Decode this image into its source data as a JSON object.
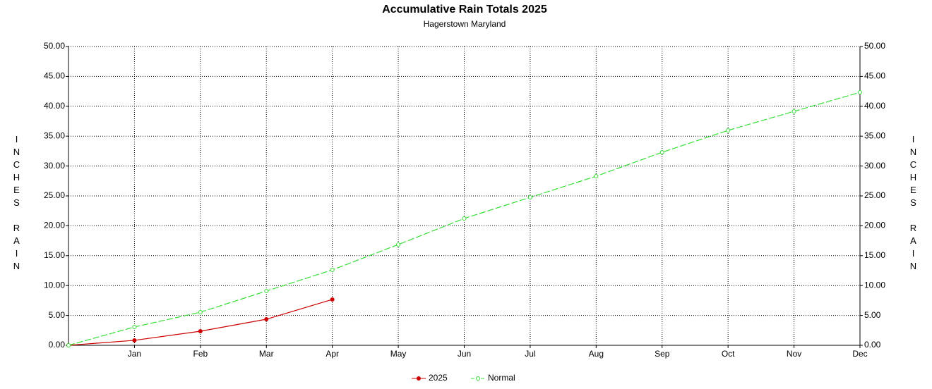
{
  "chart_data": {
    "type": "line",
    "title": "Accumulative Rain Totals 2025",
    "subtitle": "Hagerstown Maryland",
    "y_label": "INCHES RAIN",
    "categories": [
      null,
      "Jan",
      "Feb",
      "Mar",
      "Apr",
      "May",
      "Jun",
      "Jul",
      "Aug",
      "Sep",
      "Oct",
      "Nov",
      "Dec"
    ],
    "series": [
      {
        "name": "2025",
        "color": "#cc0000",
        "dash": false,
        "values": [
          0,
          0.83,
          2.36,
          4.36,
          7.67,
          null,
          null,
          null,
          null,
          null,
          null,
          null,
          null
        ]
      },
      {
        "name": "Normal",
        "color": "#33dd33",
        "dash": true,
        "values": [
          0,
          3.07,
          5.54,
          9.08,
          12.62,
          16.86,
          21.23,
          24.76,
          28.3,
          32.3,
          35.97,
          39.15,
          42.33
        ]
      }
    ],
    "ylim": [
      0,
      50
    ],
    "yticks": [
      {
        "value": 0,
        "label": "0.00"
      },
      {
        "value": 5,
        "label": "5.00"
      },
      {
        "value": 10,
        "label": "10.00"
      },
      {
        "value": 15,
        "label": "15.00"
      },
      {
        "value": 20,
        "label": "20.00"
      },
      {
        "value": 25,
        "label": "25.00"
      },
      {
        "value": 30,
        "label": "30.00"
      },
      {
        "value": 35,
        "label": "35.00"
      },
      {
        "value": 40,
        "label": "40.00"
      },
      {
        "value": 45,
        "label": "45.00"
      },
      {
        "value": 50,
        "label": "50.00"
      }
    ],
    "grid": true,
    "legend": "bottom"
  }
}
